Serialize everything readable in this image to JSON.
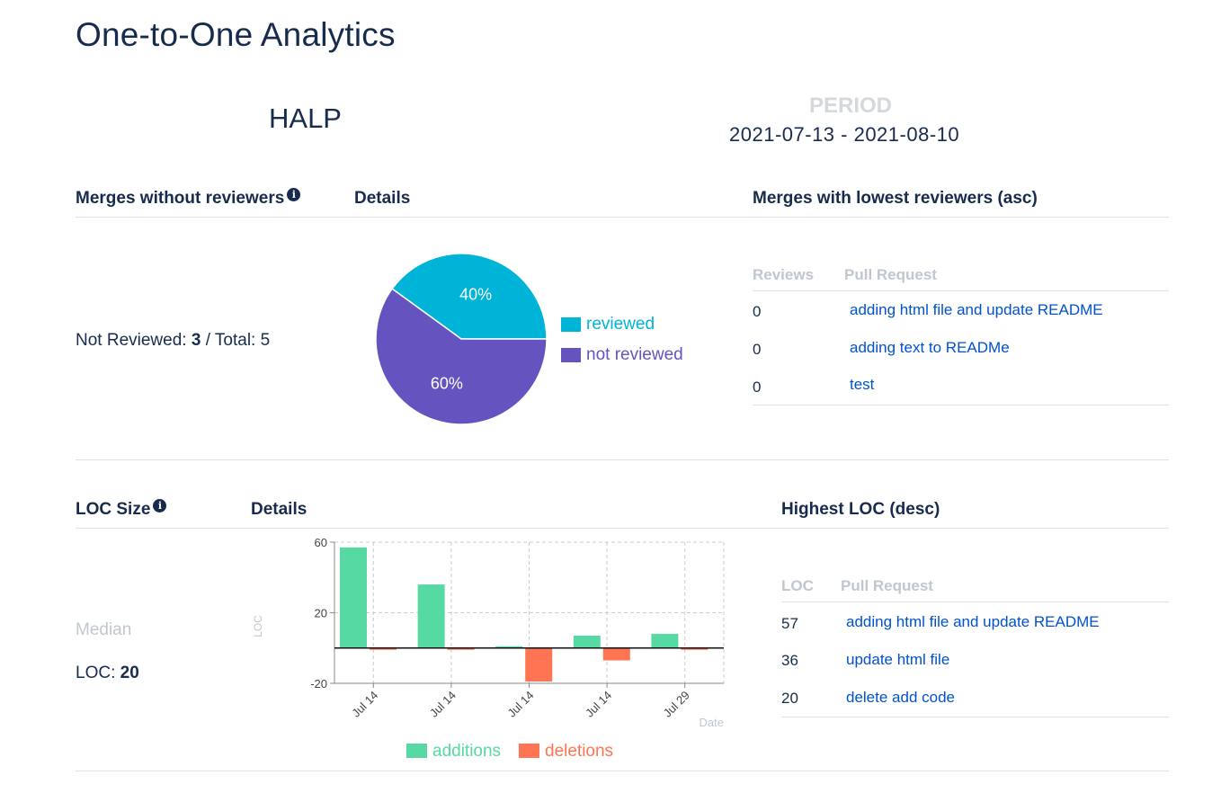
{
  "header": {
    "title": "One-to-One Analytics",
    "team": "HALP",
    "period_label": "PERIOD",
    "period_value": "2021-07-13 - 2021-08-10"
  },
  "merges_section": {
    "heading": "Merges without reviewers",
    "details_heading": "Details",
    "stat": {
      "prefix": "Not Reviewed: ",
      "not_reviewed": "3",
      "middle": " / Total: ",
      "total": "5"
    },
    "table": {
      "heading": "Merges with lowest reviewers (asc)",
      "columns": [
        "Reviews",
        "Pull Request"
      ],
      "rows": [
        {
          "reviews": "0",
          "pr": "adding html file and update README"
        },
        {
          "reviews": "0",
          "pr": "adding text to READMe"
        },
        {
          "reviews": "0",
          "pr": "test"
        }
      ]
    }
  },
  "loc_section": {
    "heading": "LOC Size",
    "details_heading": "Details",
    "median_label": "Median",
    "loc_prefix": "LOC: ",
    "loc_value": "20",
    "table": {
      "heading": "Highest LOC (desc)",
      "columns": [
        "LOC",
        "Pull Request"
      ],
      "rows": [
        {
          "loc": "57",
          "pr": "adding html file and update README"
        },
        {
          "loc": "36",
          "pr": "update html file"
        },
        {
          "loc": "20",
          "pr": "delete add code"
        }
      ]
    }
  },
  "colors": {
    "reviewed": "#00b4d8",
    "not_reviewed": "#6554c0",
    "additions": "#57d9a3",
    "deletions": "#ff7452"
  },
  "chart_data": [
    {
      "type": "pie",
      "labels": [
        "reviewed",
        "not reviewed"
      ],
      "values": [
        40,
        60
      ],
      "value_labels": [
        "40%",
        "60%"
      ],
      "legend": "right"
    },
    {
      "type": "bar",
      "categories": [
        "Jul 14",
        "Jul 14",
        "Jul 14",
        "Jul 14",
        "Jul 29"
      ],
      "series": [
        {
          "name": "additions",
          "values": [
            57,
            36,
            1,
            7,
            8
          ]
        },
        {
          "name": "deletions",
          "values": [
            -1,
            -1,
            -19,
            -7,
            -1
          ]
        }
      ],
      "xlabel": "Date",
      "ylabel": "LOC",
      "ylim": [
        -20,
        60
      ],
      "yticks": [
        60,
        20,
        -20
      ],
      "grid": true,
      "legend": "bottom"
    }
  ]
}
